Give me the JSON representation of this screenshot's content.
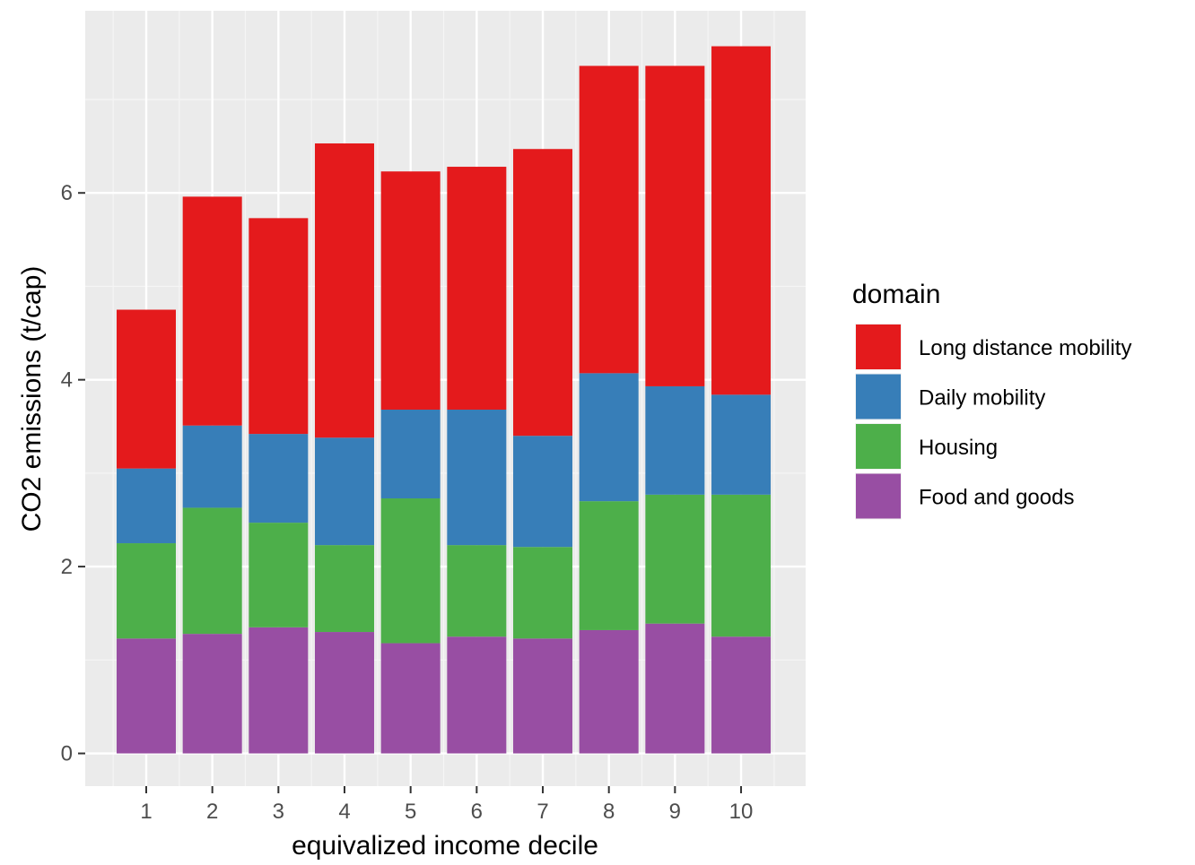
{
  "chart_data": {
    "type": "bar",
    "stacked": true,
    "categories": [
      "1",
      "2",
      "3",
      "4",
      "5",
      "6",
      "7",
      "8",
      "9",
      "10"
    ],
    "series": [
      {
        "name": "Food and goods",
        "color": "#984EA3",
        "values": [
          1.23,
          1.28,
          1.35,
          1.3,
          1.18,
          1.25,
          1.23,
          1.32,
          1.39,
          1.25
        ]
      },
      {
        "name": "Housing",
        "color": "#4DAF4A",
        "values": [
          1.02,
          1.35,
          1.12,
          0.93,
          1.55,
          0.98,
          0.98,
          1.38,
          1.38,
          1.52
        ]
      },
      {
        "name": "Daily mobility",
        "color": "#377EB8",
        "values": [
          0.8,
          0.88,
          0.95,
          1.15,
          0.95,
          1.45,
          1.19,
          1.37,
          1.16,
          1.07
        ]
      },
      {
        "name": "Long distance mobility",
        "color": "#E41A1C",
        "values": [
          1.7,
          2.45,
          2.31,
          3.15,
          2.55,
          2.6,
          3.07,
          3.29,
          3.43,
          3.73
        ]
      }
    ],
    "legend": {
      "title": "domain",
      "position": "right",
      "order": [
        "Long distance mobility",
        "Daily mobility",
        "Housing",
        "Food and goods"
      ]
    },
    "xlabel": "equivalized income decile",
    "ylabel": "CO2 emissions (t/cap)",
    "yticks": [
      0,
      2,
      4,
      6
    ],
    "ylim": [
      -0.35,
      7.95
    ],
    "grid": true,
    "panel_background": "#EBEBEB",
    "grid_color": "#FFFFFF"
  }
}
